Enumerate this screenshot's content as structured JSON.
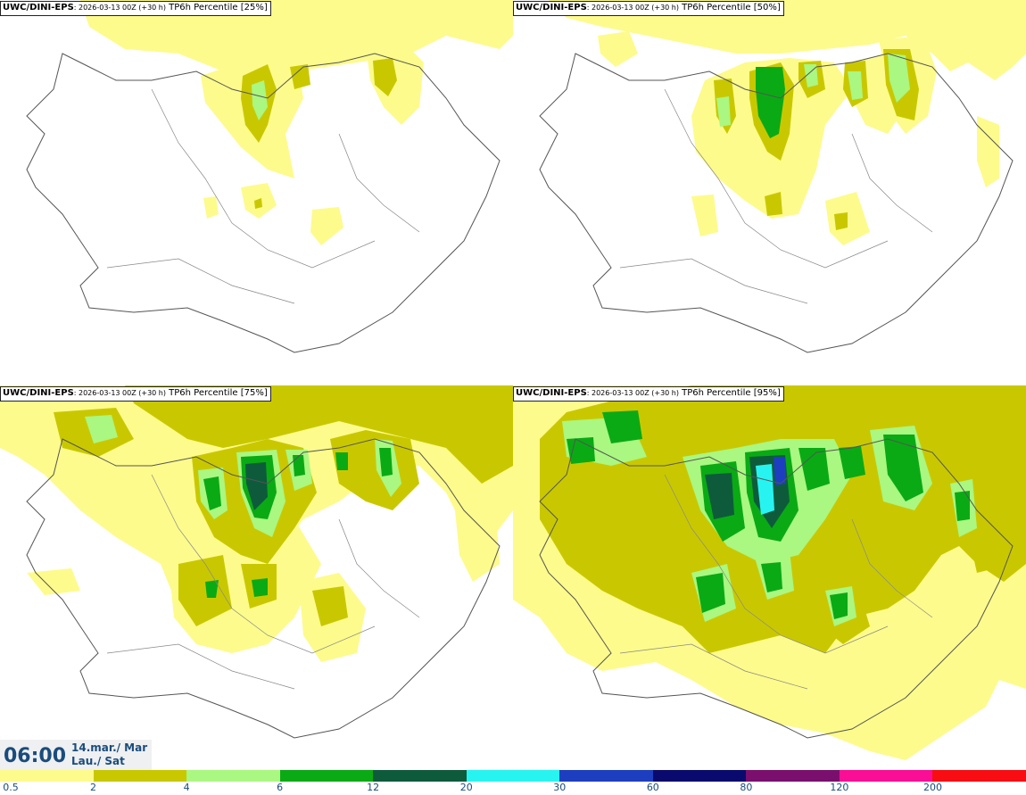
{
  "panels": [
    {
      "model": "UWC/DINI-EPS",
      "run": ": 2026-03-13 00Z (+30 h)",
      "field": " TP6h Percentile [25%]"
    },
    {
      "model": "UWC/DINI-EPS",
      "run": ": 2026-03-13 00Z (+30 h)",
      "field": " TP6h Percentile [50%]"
    },
    {
      "model": "UWC/DINI-EPS",
      "run": ": 2026-03-13 00Z (+30 h)",
      "field": " TP6h Percentile [75%]"
    },
    {
      "model": "UWC/DINI-EPS",
      "run": ": 2026-03-13 00Z (+30 h)",
      "field": " TP6h Percentile [95%]"
    }
  ],
  "valid_time": {
    "time": "06:00",
    "date_line1": "14.mar./ Mar",
    "date_line2": "Lau./ Sat"
  },
  "legend": {
    "ticks": [
      "0.5",
      "2",
      "4",
      "6",
      "12",
      "20",
      "30",
      "60",
      "80",
      "120",
      "200"
    ],
    "colors": [
      "#fdfb8c",
      "#c9c800",
      "#aaf781",
      "#0aaa15",
      "#0e5b3c",
      "#27f4f0",
      "#1d3fbf",
      "#0a0a6e",
      "#7a0f6e",
      "#fa0e96",
      "#f80d12"
    ]
  }
}
